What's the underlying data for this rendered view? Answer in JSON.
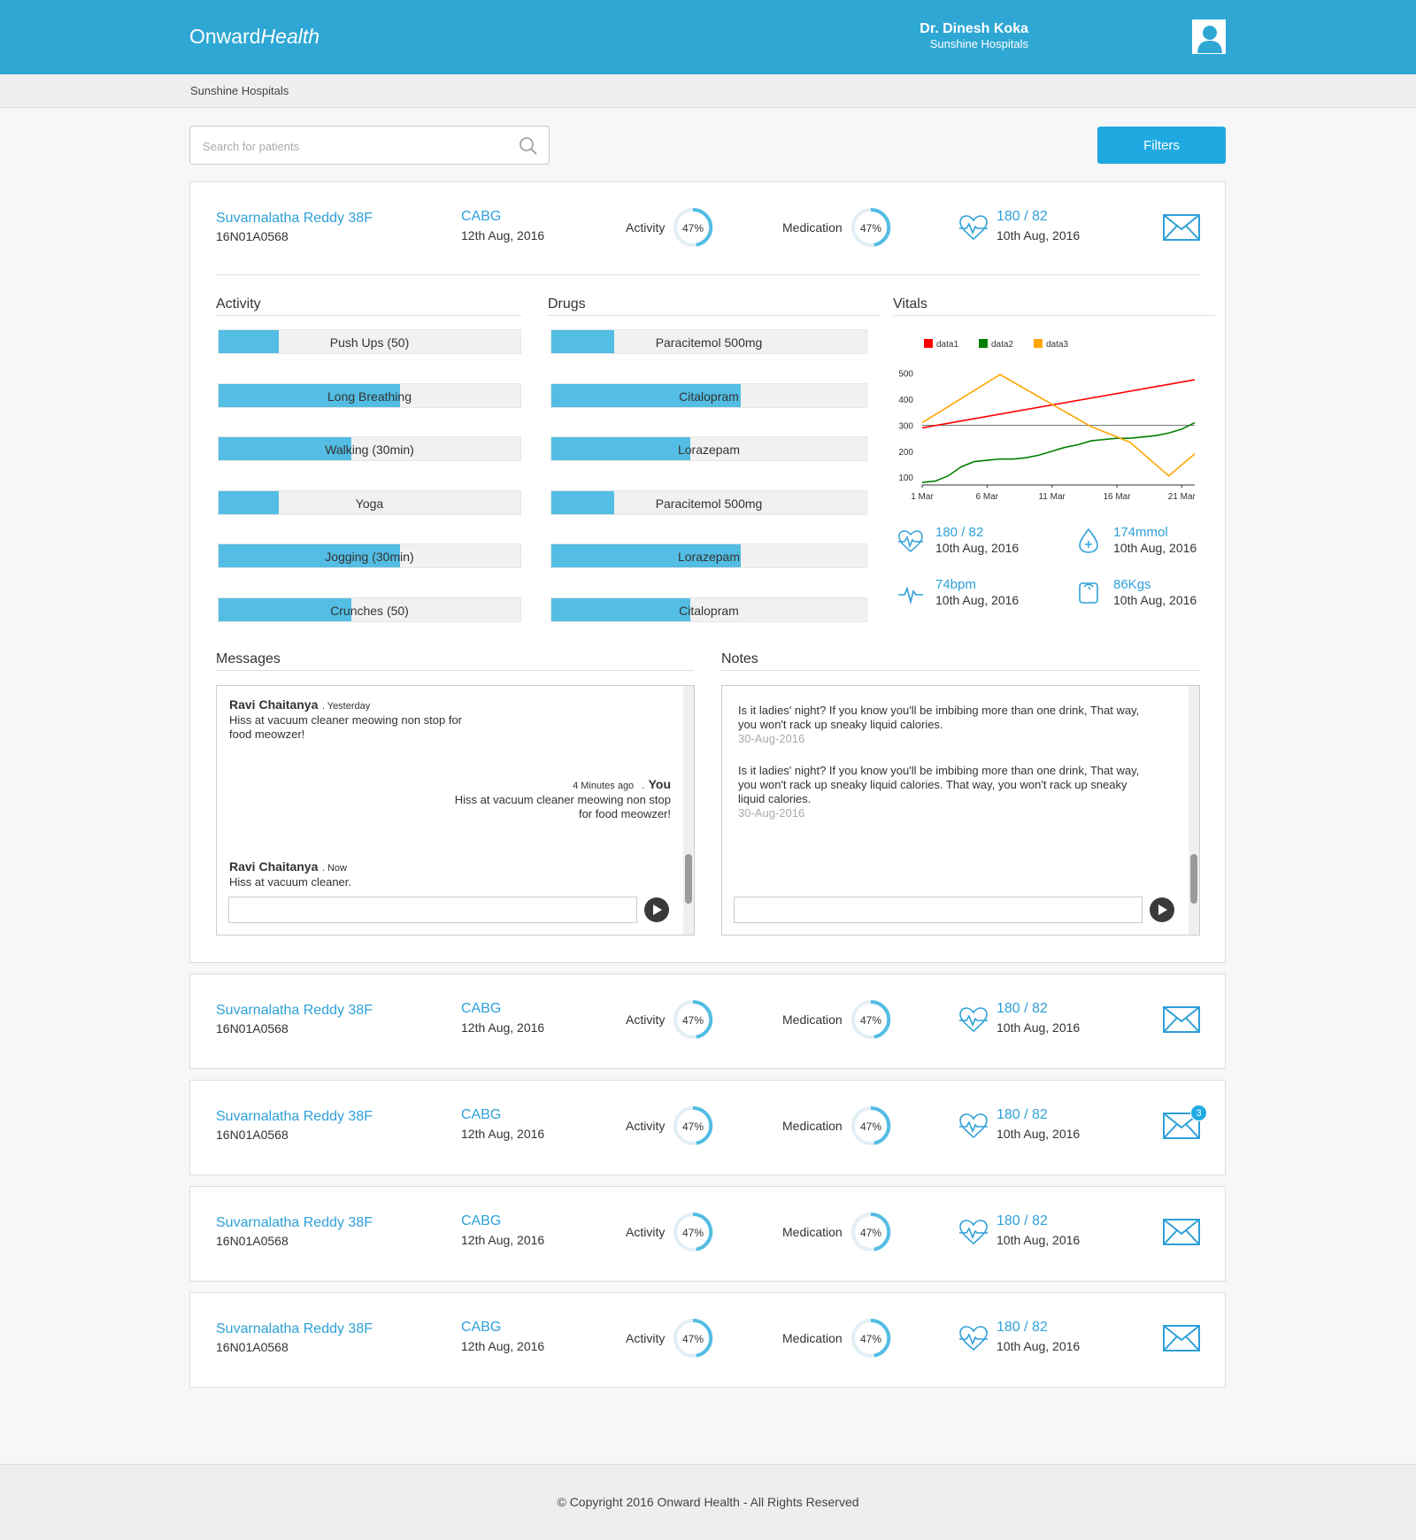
{
  "header": {
    "logo_part1": "Onward",
    "logo_part2": "Health",
    "user_name": "Dr. Dinesh Koka",
    "user_hospital": "Sunshine Hospitals"
  },
  "breadcrumb": "Sunshine Hospitals",
  "search": {
    "placeholder": "Search for patients"
  },
  "filters_label": "Filters",
  "colors": {
    "primary": "#2ea7d4",
    "accent": "#1fa9e1",
    "bar_fill": "#53bde3",
    "text_link": "#2ea0d8"
  },
  "expanded_patient": {
    "name": "Suvarnalatha Reddy 38F",
    "id": "16N01A0568",
    "procedure": "CABG",
    "procedure_date": "12th Aug, 2016",
    "activity_label": "Activity",
    "activity_percent": "47%",
    "medication_label": "Medication",
    "medication_percent": "47%",
    "bp": "180 / 82",
    "bp_date": "10th Aug, 2016",
    "sections": {
      "activity_title": "Activity",
      "drugs_title": "Drugs",
      "vitals_title": "Vitals",
      "messages_title": "Messages",
      "notes_title": "Notes"
    },
    "activities": [
      {
        "label": "Push Ups (50)",
        "progress": 0.2
      },
      {
        "label": "Long Breathing",
        "progress": 0.6
      },
      {
        "label": "Walking (30min)",
        "progress": 0.44
      },
      {
        "label": "Yoga",
        "progress": 0.2
      },
      {
        "label": "Jogging (30min)",
        "progress": 0.6
      },
      {
        "label": "Crunches (50)",
        "progress": 0.44
      }
    ],
    "drugs": [
      {
        "label": "Paracitemol 500mg",
        "progress": 0.2
      },
      {
        "label": "Citalopram",
        "progress": 0.6
      },
      {
        "label": "Lorazepam",
        "progress": 0.44
      },
      {
        "label": "Paracitemol 500mg",
        "progress": 0.2
      },
      {
        "label": "Lorazepam",
        "progress": 0.6
      },
      {
        "label": "Citalopram",
        "progress": 0.44
      }
    ],
    "vitals": {
      "bp": {
        "value": "180 / 82",
        "date": "10th Aug, 2016",
        "icon": "heart-pulse-icon"
      },
      "sugar": {
        "value": "174mmol",
        "date": "10th Aug, 2016",
        "icon": "drop-icon"
      },
      "pulse": {
        "value": "74bpm",
        "date": "10th Aug, 2016",
        "icon": "pulse-icon"
      },
      "weight": {
        "value": "86Kgs",
        "date": "10th Aug, 2016",
        "icon": "scale-icon"
      }
    },
    "messages": [
      {
        "sender": "Ravi Chaitanya",
        "time": ". Yesterday",
        "text1": "Hiss at vacuum cleaner meowing non stop for",
        "text2": "food meowzer!"
      },
      {
        "sender": "You",
        "time": "4 Minutes ago",
        "sep": ".",
        "text1": "Hiss at vacuum cleaner meowing non stop",
        "text2": "for food meowzer!"
      },
      {
        "sender": "Ravi Chaitanya",
        "time": ". Now",
        "text1": "Hiss at vacuum cleaner."
      }
    ],
    "notes": [
      {
        "text1": "Is it ladies' night? If you know you'll be imbibing more than one drink, That way,",
        "text2": "you won't rack up sneaky liquid calories.",
        "date": "30-Aug-2016"
      },
      {
        "text1": "Is it ladies' night? If you know you'll be imbibing more than one drink, That way,",
        "text2": "you won't rack up sneaky liquid calories. That way, you won't rack up sneaky",
        "text3": "liquid calories.",
        "date": "30-Aug-2016"
      }
    ]
  },
  "chart_data": {
    "type": "line",
    "x": [
      "1 Mar",
      "6 Mar",
      "11 Mar",
      "16 Mar",
      "21 Mar"
    ],
    "xlabel": "",
    "ylabel": "",
    "y_ticks": [
      100,
      200,
      300,
      400,
      500
    ],
    "ylim": [
      70,
      540
    ],
    "legend_position": "top-left",
    "reference_line": 300,
    "series": [
      {
        "name": "data1",
        "color": "#ff0000",
        "x": [
          0,
          21
        ],
        "values": [
          290,
          475
        ]
      },
      {
        "name": "data2",
        "color": "#008000",
        "x": [
          0,
          1,
          2,
          3,
          4,
          5,
          6,
          7,
          8,
          9,
          10,
          11,
          12,
          13,
          14,
          15,
          16,
          17,
          18,
          19,
          20,
          21
        ],
        "values": [
          80,
          85,
          105,
          140,
          160,
          165,
          170,
          170,
          175,
          185,
          200,
          215,
          225,
          240,
          245,
          250,
          250,
          255,
          260,
          270,
          285,
          310
        ]
      },
      {
        "name": "data3",
        "color": "#ffa500",
        "x": [
          0,
          6,
          13,
          16,
          19,
          21
        ],
        "values": [
          310,
          495,
          295,
          235,
          105,
          190
        ]
      }
    ]
  },
  "other_patients": [
    {
      "name": "Suvarnalatha Reddy 38F",
      "id": "16N01A0568",
      "procedure": "CABG",
      "procedure_date": "12th Aug, 2016",
      "activity_label": "Activity",
      "activity_percent": "47%",
      "medication_label": "Medication",
      "medication_percent": "47%",
      "bp": "180 / 82",
      "bp_date": "10th Aug, 2016",
      "unread": ""
    },
    {
      "name": "Suvarnalatha Reddy 38F",
      "id": "16N01A0568",
      "procedure": "CABG",
      "procedure_date": "12th Aug, 2016",
      "activity_label": "Activity",
      "activity_percent": "47%",
      "medication_label": "Medication",
      "medication_percent": "47%",
      "bp": "180 / 82",
      "bp_date": "10th Aug, 2016",
      "unread": "3"
    },
    {
      "name": "Suvarnalatha Reddy 38F",
      "id": "16N01A0568",
      "procedure": "CABG",
      "procedure_date": "12th Aug, 2016",
      "activity_label": "Activity",
      "activity_percent": "47%",
      "medication_label": "Medication",
      "medication_percent": "47%",
      "bp": "180 / 82",
      "bp_date": "10th Aug, 2016",
      "unread": ""
    },
    {
      "name": "Suvarnalatha Reddy 38F",
      "id": "16N01A0568",
      "procedure": "CABG",
      "procedure_date": "12th Aug, 2016",
      "activity_label": "Activity",
      "activity_percent": "47%",
      "medication_label": "Medication",
      "medication_percent": "47%",
      "bp": "180 / 82",
      "bp_date": "10th Aug, 2016",
      "unread": ""
    }
  ],
  "footer": "© Copyright 2016 Onward Health - All Rights Reserved"
}
